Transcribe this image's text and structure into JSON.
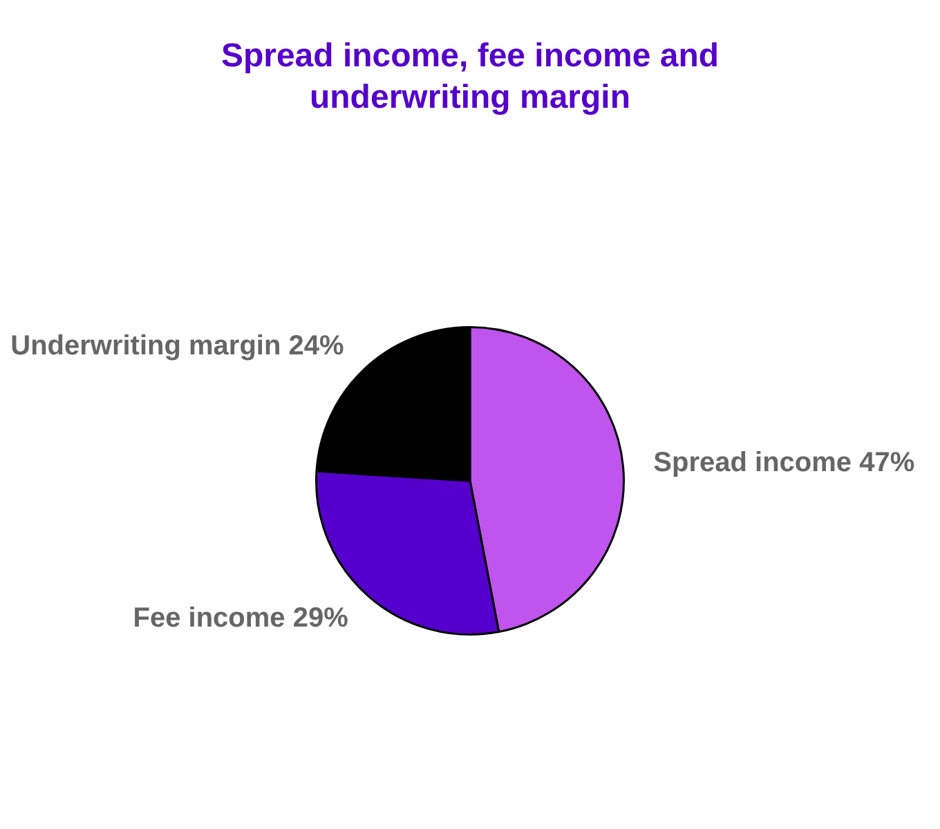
{
  "chart_data": {
    "type": "pie",
    "title": "Spread income, fee income and underwriting margin",
    "categories": [
      "Spread income",
      "Fee income",
      "Underwriting margin"
    ],
    "values": [
      47,
      29,
      24
    ],
    "colors": [
      "#bf55ec",
      "#5500cc",
      "#000000"
    ],
    "value_labels": [
      "47%",
      "29%",
      "24%"
    ],
    "legend": false
  }
}
